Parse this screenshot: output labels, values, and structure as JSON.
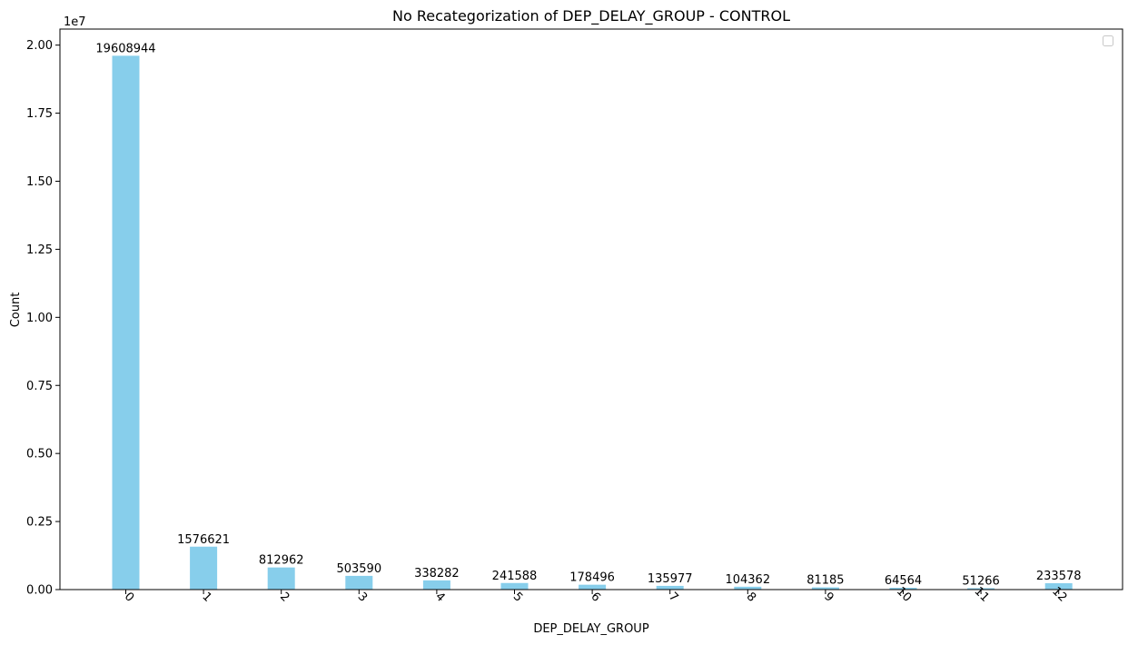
{
  "chart_data": {
    "type": "bar",
    "title": "No Recategorization of DEP_DELAY_GROUP - CONTROL",
    "xlabel": "DEP_DELAY_GROUP",
    "ylabel": "Count",
    "y_offset_label": "1e7",
    "categories": [
      "0",
      "1",
      "2",
      "3",
      "4",
      "5",
      "6",
      "7",
      "8",
      "9",
      "10",
      "11",
      "12"
    ],
    "values": [
      19608944,
      1576621,
      812962,
      503590,
      338282,
      241588,
      178496,
      135977,
      104362,
      81185,
      64564,
      51266,
      233578
    ],
    "data_labels": [
      "19608944",
      "1576621",
      "812962",
      "503590",
      "338282",
      "241588",
      "178496",
      "135977",
      "104362",
      "81185",
      "64564",
      "51266",
      "233578"
    ],
    "y_ticks": [
      0,
      2500000,
      5000000,
      7500000,
      10000000,
      12500000,
      15000000,
      17500000,
      20000000
    ],
    "y_tick_labels": [
      "0.00",
      "0.25",
      "0.50",
      "0.75",
      "1.00",
      "1.25",
      "1.50",
      "1.75",
      "2.00"
    ],
    "ylim": [
      0,
      20589391
    ],
    "x_tick_rotation_deg": 45,
    "bar_color": "#87ceeb",
    "grid": false,
    "legend": {
      "placement": "top-right",
      "entries": []
    }
  }
}
